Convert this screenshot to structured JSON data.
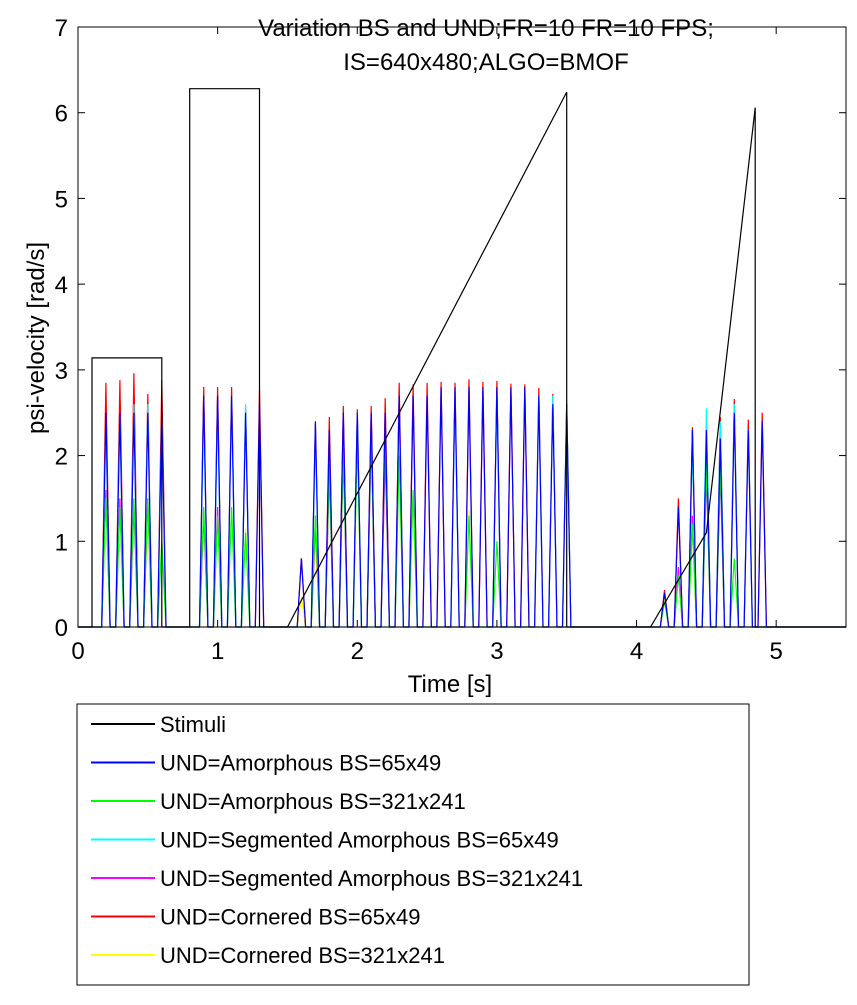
{
  "chart_data": {
    "type": "line",
    "title_lines": [
      "Variation BS and UND;FR=10 FR=10 FPS;",
      "IS=640x480;ALGO=BMOF"
    ],
    "xlabel": "Time [s]",
    "ylabel": "psi-velocity [rad/s]",
    "xlim": [
      0,
      5.5
    ],
    "ylim": [
      0,
      7
    ],
    "x_ticks": [
      "0",
      "1",
      "2",
      "3",
      "4",
      "5"
    ],
    "y_ticks": [
      "0",
      "1",
      "2",
      "3",
      "4",
      "5",
      "6",
      "7"
    ],
    "grid": false,
    "legend_position": "below",
    "series": [
      {
        "name": "Stimuli",
        "color": "#000000",
        "x": [
          0,
          0.1,
          0.1,
          0.6,
          0.6,
          0.8,
          0.8,
          1.3,
          1.3,
          1.5,
          3.5,
          3.5,
          4.1,
          4.5,
          4.85,
          4.85,
          5.5
        ],
        "y": [
          0,
          0,
          3.14,
          3.14,
          0,
          0,
          6.28,
          6.28,
          0,
          0,
          6.24,
          0,
          0,
          1.1,
          6.06,
          0,
          0
        ]
      },
      {
        "name": "UND=Amorphous BS=65x49",
        "color": "#0000ff",
        "spikes": [
          [
            0.2,
            2.5
          ],
          [
            0.3,
            2.5
          ],
          [
            0.4,
            2.5
          ],
          [
            0.5,
            2.5
          ],
          [
            0.6,
            2.5
          ],
          [
            0.9,
            2.7
          ],
          [
            1.0,
            2.7
          ],
          [
            1.1,
            2.7
          ],
          [
            1.2,
            2.5
          ],
          [
            1.3,
            2.6
          ],
          [
            1.6,
            0.8
          ],
          [
            1.7,
            2.4
          ],
          [
            1.8,
            2.3
          ],
          [
            1.9,
            2.5
          ],
          [
            2.0,
            2.5
          ],
          [
            2.1,
            2.5
          ],
          [
            2.2,
            2.5
          ],
          [
            2.3,
            2.7
          ],
          [
            2.4,
            2.7
          ],
          [
            2.5,
            2.7
          ],
          [
            2.6,
            2.8
          ],
          [
            2.7,
            2.8
          ],
          [
            2.8,
            2.8
          ],
          [
            2.9,
            2.8
          ],
          [
            3.0,
            2.8
          ],
          [
            3.1,
            2.8
          ],
          [
            3.2,
            2.8
          ],
          [
            3.3,
            2.7
          ],
          [
            3.4,
            2.6
          ],
          [
            3.5,
            2.6
          ],
          [
            4.2,
            0.4
          ],
          [
            4.3,
            1.4
          ],
          [
            4.4,
            2.3
          ],
          [
            4.5,
            2.3
          ],
          [
            4.6,
            2.2
          ],
          [
            4.7,
            2.5
          ],
          [
            4.8,
            2.3
          ],
          [
            4.9,
            2.4
          ]
        ]
      },
      {
        "name": "UND=Amorphous BS=321x241",
        "color": "#00ff00",
        "spikes": [
          [
            0.2,
            1.5
          ],
          [
            0.3,
            1.4
          ],
          [
            0.4,
            1.5
          ],
          [
            0.5,
            1.5
          ],
          [
            0.6,
            1.0
          ],
          [
            0.9,
            1.4
          ],
          [
            1.0,
            1.3
          ],
          [
            1.1,
            1.4
          ],
          [
            1.2,
            1.1
          ],
          [
            1.7,
            1.3
          ],
          [
            1.8,
            1.9
          ],
          [
            1.9,
            2.1
          ],
          [
            2.0,
            2.2
          ],
          [
            2.1,
            2.3
          ],
          [
            2.2,
            2.3
          ],
          [
            2.3,
            2.0
          ],
          [
            2.4,
            1.6
          ],
          [
            2.8,
            1.3
          ],
          [
            3.0,
            1.0
          ],
          [
            4.2,
            0.3
          ],
          [
            4.3,
            0.6
          ],
          [
            4.4,
            1.2
          ],
          [
            4.5,
            1.9
          ],
          [
            4.6,
            1.9
          ],
          [
            4.7,
            0.8
          ]
        ]
      },
      {
        "name": "UND=Segmented Amorphous BS=65x49",
        "color": "#00ffff",
        "spikes": [
          [
            0.2,
            2.4
          ],
          [
            0.3,
            2.5
          ],
          [
            0.4,
            2.6
          ],
          [
            0.5,
            2.6
          ],
          [
            0.6,
            2.5
          ],
          [
            0.9,
            2.6
          ],
          [
            1.0,
            2.6
          ],
          [
            1.1,
            2.7
          ],
          [
            1.2,
            2.6
          ],
          [
            1.7,
            2.3
          ],
          [
            2.0,
            2.5
          ],
          [
            2.3,
            2.6
          ],
          [
            2.7,
            2.7
          ],
          [
            3.0,
            2.7
          ],
          [
            3.3,
            2.7
          ],
          [
            3.4,
            2.7
          ],
          [
            3.5,
            2.65
          ],
          [
            4.4,
            2.1
          ],
          [
            4.5,
            2.55
          ],
          [
            4.6,
            2.4
          ],
          [
            4.7,
            2.6
          ],
          [
            4.8,
            2.3
          ]
        ]
      },
      {
        "name": "UND=Segmented Amorphous BS=321x241",
        "color": "#ff00ff",
        "spikes": [
          [
            0.2,
            1.6
          ],
          [
            0.3,
            1.5
          ],
          [
            0.4,
            1.4
          ],
          [
            0.5,
            1.5
          ],
          [
            0.9,
            1.3
          ],
          [
            1.0,
            1.4
          ],
          [
            1.7,
            1.2
          ],
          [
            1.8,
            1.8
          ],
          [
            1.9,
            2.0
          ],
          [
            2.1,
            2.2
          ],
          [
            2.2,
            2.0
          ],
          [
            4.3,
            0.7
          ],
          [
            4.4,
            1.3
          ],
          [
            4.5,
            1.8
          ],
          [
            4.6,
            1.8
          ]
        ]
      },
      {
        "name": "UND=Cornered BS=65x49",
        "color": "#ff0000",
        "spikes": [
          [
            0.2,
            2.85
          ],
          [
            0.3,
            2.88
          ],
          [
            0.4,
            2.96
          ],
          [
            0.5,
            2.72
          ],
          [
            0.6,
            2.88
          ],
          [
            0.9,
            2.8
          ],
          [
            1.0,
            2.8
          ],
          [
            1.1,
            2.8
          ],
          [
            1.2,
            2.57
          ],
          [
            1.3,
            2.76
          ],
          [
            1.6,
            0.8
          ],
          [
            1.7,
            2.37
          ],
          [
            1.8,
            2.45
          ],
          [
            1.9,
            2.58
          ],
          [
            2.0,
            2.54
          ],
          [
            2.1,
            2.58
          ],
          [
            2.2,
            2.67
          ],
          [
            2.3,
            2.85
          ],
          [
            2.4,
            2.83
          ],
          [
            2.5,
            2.85
          ],
          [
            2.6,
            2.86
          ],
          [
            2.7,
            2.85
          ],
          [
            2.8,
            2.89
          ],
          [
            2.9,
            2.86
          ],
          [
            3.0,
            2.87
          ],
          [
            3.1,
            2.84
          ],
          [
            3.2,
            2.83
          ],
          [
            3.3,
            2.79
          ],
          [
            3.4,
            2.72
          ],
          [
            3.5,
            2.6
          ],
          [
            4.2,
            0.43
          ],
          [
            4.3,
            1.5
          ],
          [
            4.4,
            2.33
          ],
          [
            4.5,
            2.3
          ],
          [
            4.6,
            2.45
          ],
          [
            4.7,
            2.66
          ],
          [
            4.8,
            2.42
          ],
          [
            4.9,
            2.5
          ]
        ]
      },
      {
        "name": "UND=Cornered BS=321x241",
        "color": "#ffff00",
        "spikes": [
          [
            0.5,
            1.37
          ],
          [
            0.6,
            1.02
          ],
          [
            1.2,
            1.15
          ],
          [
            1.6,
            0.35
          ],
          [
            1.7,
            1.05
          ],
          [
            1.8,
            1.95
          ],
          [
            1.9,
            2.14
          ],
          [
            2.0,
            2.2
          ],
          [
            2.1,
            2.33
          ],
          [
            2.2,
            2.15
          ],
          [
            2.3,
            2.04
          ],
          [
            2.4,
            1.55
          ],
          [
            2.8,
            1.36
          ],
          [
            4.2,
            0.38
          ],
          [
            4.4,
            1.15
          ],
          [
            4.5,
            1.93
          ],
          [
            4.6,
            1.95
          ]
        ]
      }
    ]
  }
}
